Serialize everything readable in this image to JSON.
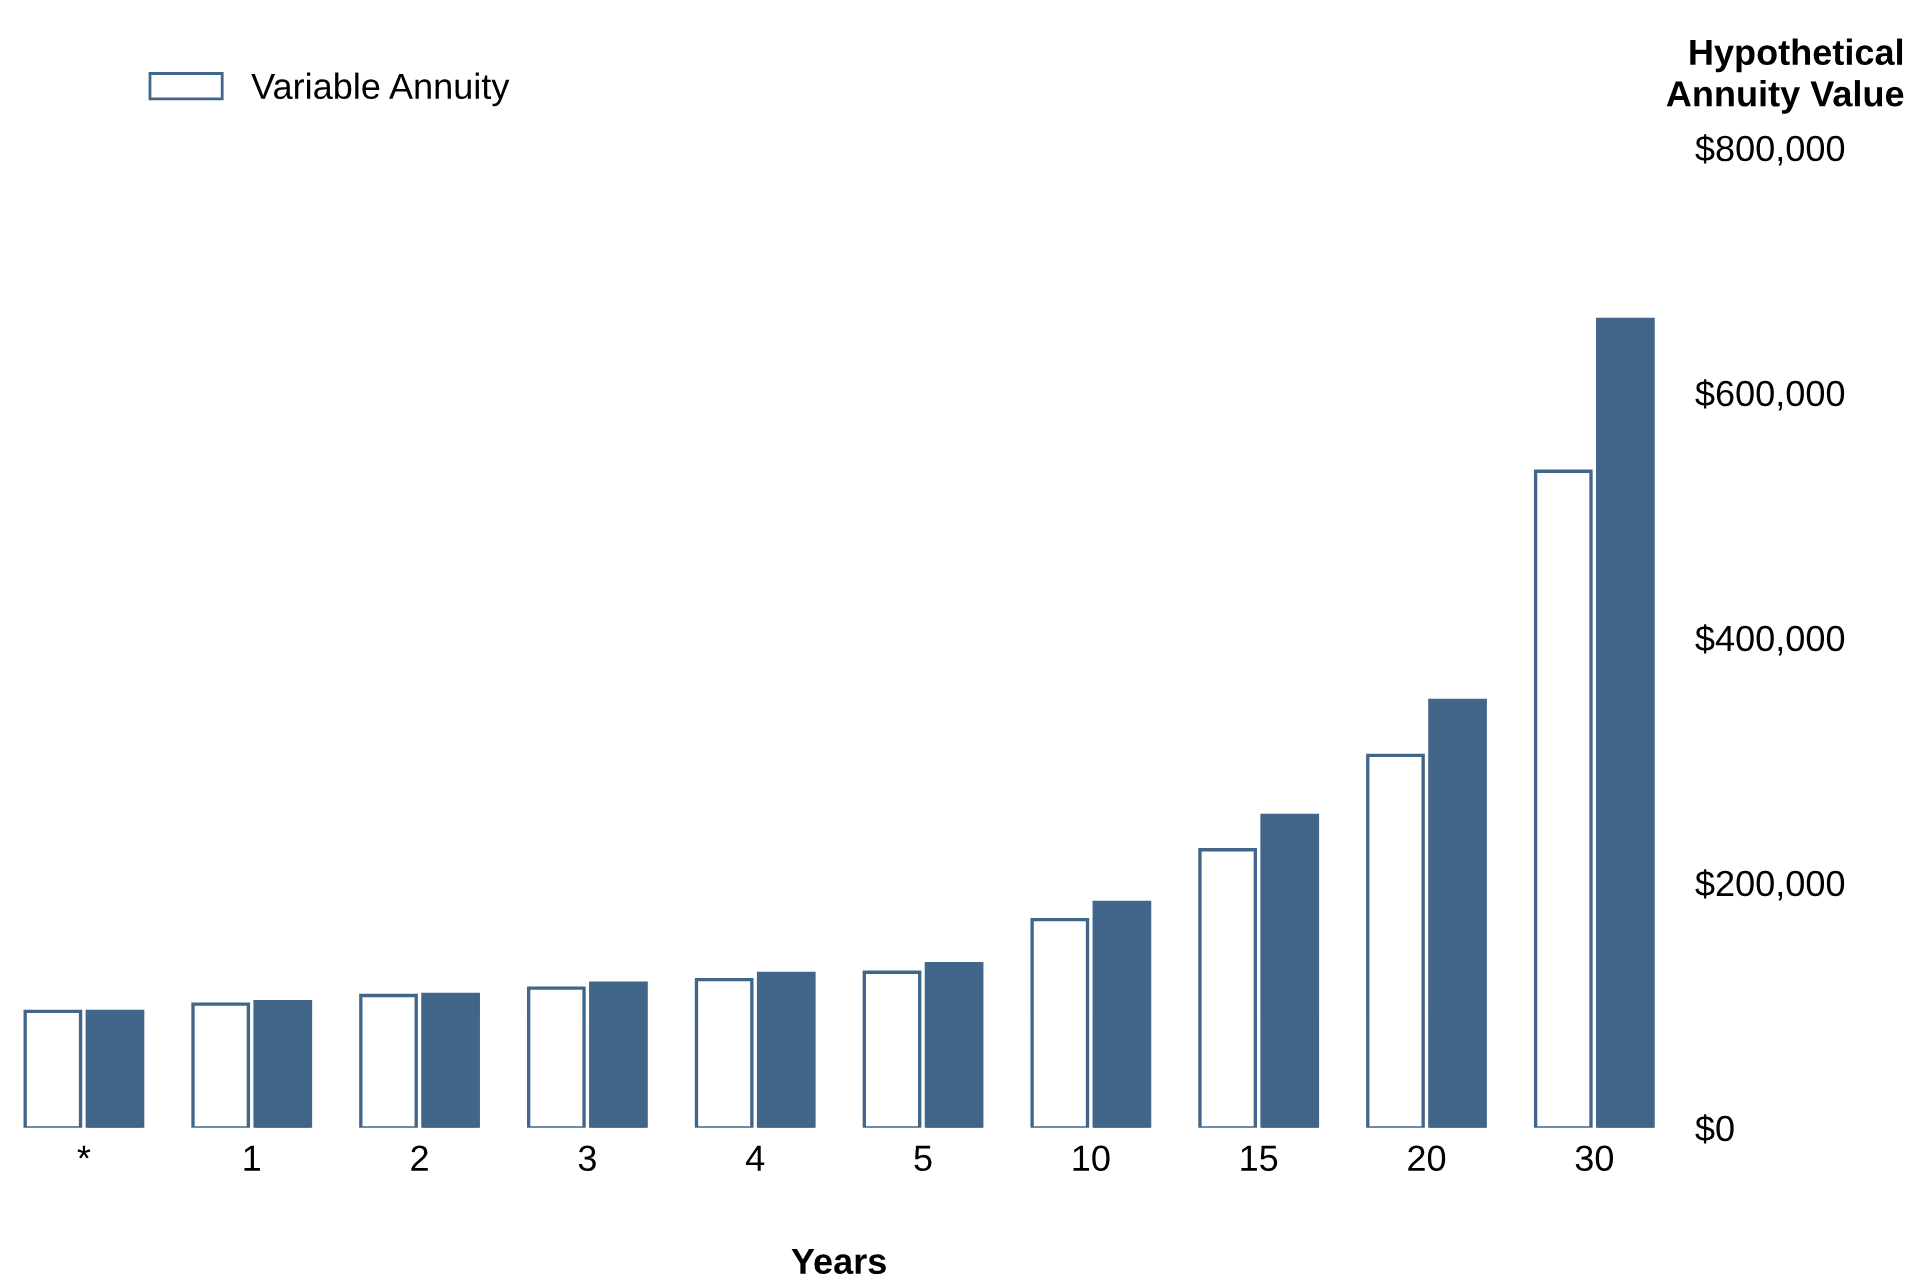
{
  "chart_data": {
    "type": "bar",
    "ylabel": "Hypothetical\nAnnuity Value",
    "xlabel": "Years",
    "categories": [
      "*",
      "1",
      "2",
      "3",
      "4",
      "5",
      "10",
      "15",
      "20",
      "30"
    ],
    "series": [
      {
        "name": "Variable Annuity",
        "color": "#ffffff",
        "values": [
          95000,
          101000,
          108000,
          114000,
          121000,
          127000,
          170000,
          227000,
          304000,
          536000
        ]
      },
      {
        "color": "#41668a",
        "values": [
          95000,
          103000,
          109000,
          118000,
          126000,
          134000,
          184000,
          255000,
          349000,
          660000
        ]
      }
    ],
    "ylim": [
      0,
      800000
    ],
    "yticks": [
      {
        "value": 0,
        "label": "$0"
      },
      {
        "value": 200000,
        "label": "$200,000"
      },
      {
        "value": 400000,
        "label": "$400,000"
      },
      {
        "value": 600000,
        "label": "$600,000"
      },
      {
        "value": 800000,
        "label": "$800,000"
      }
    ],
    "legend": "top left"
  }
}
